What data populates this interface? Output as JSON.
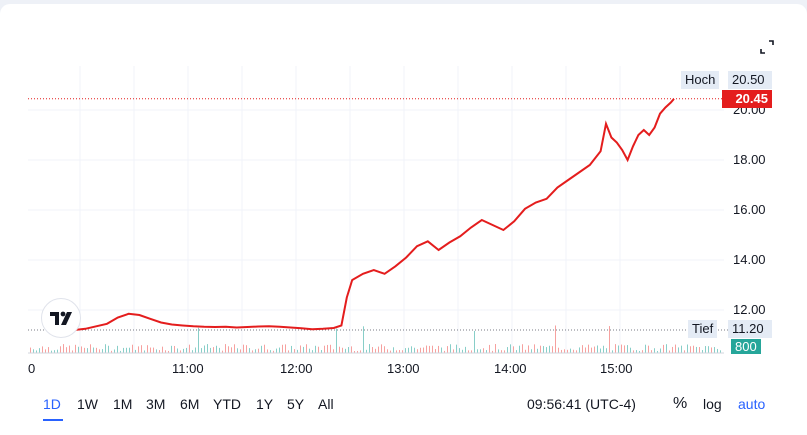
{
  "chart_data": {
    "type": "line",
    "x_ticks": [
      "0",
      "11:00",
      "12:00",
      "13:00",
      "14:00",
      "15:00"
    ],
    "y_ticks": [
      "20.00",
      "18.00",
      "16.00",
      "14.00",
      "12.00"
    ],
    "ylim": [
      10.8,
      21.0
    ],
    "x_range_hours": [
      10.25,
      16.15
    ],
    "series": [
      {
        "color": "#e41d1d",
        "points": [
          [
            10.27,
            11.38
          ],
          [
            10.35,
            11.28
          ],
          [
            10.45,
            11.2
          ],
          [
            10.55,
            11.25
          ],
          [
            10.65,
            11.35
          ],
          [
            10.75,
            11.45
          ],
          [
            10.85,
            11.7
          ],
          [
            10.95,
            11.85
          ],
          [
            11.05,
            11.8
          ],
          [
            11.15,
            11.65
          ],
          [
            11.25,
            11.5
          ],
          [
            11.35,
            11.42
          ],
          [
            11.45,
            11.38
          ],
          [
            11.55,
            11.35
          ],
          [
            11.65,
            11.33
          ],
          [
            11.75,
            11.32
          ],
          [
            11.85,
            11.33
          ],
          [
            11.95,
            11.3
          ],
          [
            12.05,
            11.32
          ],
          [
            12.15,
            11.34
          ],
          [
            12.25,
            11.35
          ],
          [
            12.35,
            11.33
          ],
          [
            12.45,
            11.3
          ],
          [
            12.55,
            11.27
          ],
          [
            12.65,
            11.23
          ],
          [
            12.75,
            11.25
          ],
          [
            12.85,
            11.28
          ],
          [
            12.92,
            11.38
          ],
          [
            12.97,
            12.5
          ],
          [
            13.02,
            13.2
          ],
          [
            13.12,
            13.45
          ],
          [
            13.22,
            13.6
          ],
          [
            13.32,
            13.45
          ],
          [
            13.42,
            13.75
          ],
          [
            13.52,
            14.1
          ],
          [
            13.62,
            14.55
          ],
          [
            13.72,
            14.75
          ],
          [
            13.82,
            14.4
          ],
          [
            13.92,
            14.7
          ],
          [
            14.02,
            14.95
          ],
          [
            14.12,
            15.3
          ],
          [
            14.22,
            15.6
          ],
          [
            14.32,
            15.4
          ],
          [
            14.42,
            15.2
          ],
          [
            14.52,
            15.55
          ],
          [
            14.62,
            16.05
          ],
          [
            14.72,
            16.3
          ],
          [
            14.82,
            16.45
          ],
          [
            14.92,
            16.9
          ],
          [
            15.02,
            17.2
          ],
          [
            15.12,
            17.5
          ],
          [
            15.22,
            17.8
          ],
          [
            15.32,
            18.35
          ],
          [
            15.37,
            19.45
          ],
          [
            15.42,
            18.9
          ],
          [
            15.47,
            18.7
          ],
          [
            15.52,
            18.4
          ],
          [
            15.57,
            18.0
          ],
          [
            15.62,
            18.55
          ],
          [
            15.67,
            19.0
          ],
          [
            15.72,
            19.2
          ],
          [
            15.77,
            19.0
          ],
          [
            15.82,
            19.3
          ],
          [
            15.87,
            19.85
          ],
          [
            15.92,
            20.1
          ],
          [
            15.97,
            20.3
          ],
          [
            16.0,
            20.45
          ]
        ]
      }
    ],
    "high_label": "Hoch",
    "high_value": "20.50",
    "high_level": 20.5,
    "low_label": "Tief",
    "low_value": "11.20",
    "low_level": 11.2,
    "last_price": "20.45",
    "last_level": 20.45,
    "volume_label": "800",
    "grid": true
  },
  "controls": {
    "ranges": [
      "1D",
      "1W",
      "1M",
      "3M",
      "6M",
      "YTD",
      "1Y",
      "5Y",
      "All"
    ],
    "active_range": "1D",
    "time": "09:56:41 (UTC-4)",
    "percent": "%",
    "log": "log",
    "auto": "auto"
  },
  "colors": {
    "line": "#e41d1d",
    "accent": "#2962ff",
    "volume_up": "#26a69a",
    "volume_down": "#ef5350"
  },
  "icons": {
    "expand": "expand-icon",
    "logo": "tradingview-logo-icon"
  }
}
